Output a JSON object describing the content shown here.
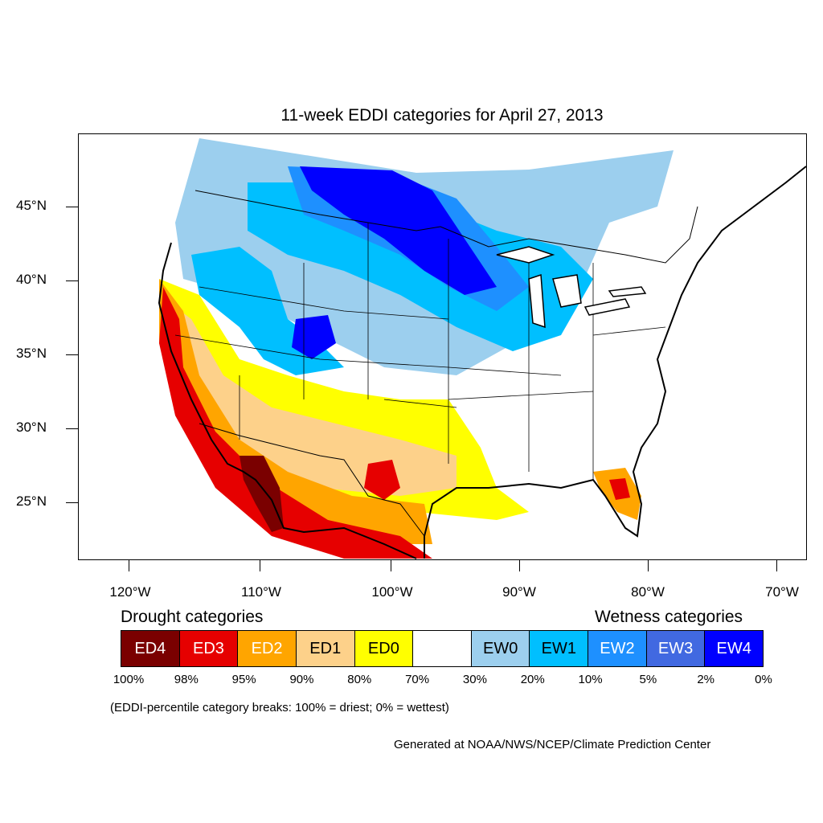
{
  "title": "11-week EDDI categories for April 27, 2013",
  "latitude_labels": [
    "45°N",
    "40°N",
    "35°N",
    "30°N",
    "25°N"
  ],
  "longitude_labels": [
    "120°W",
    "110°W",
    "100°W",
    "90°W",
    "80°W",
    "70°W"
  ],
  "legend": {
    "drought_heading": "Drought categories",
    "wetness_heading": "Wetness categories",
    "categories": [
      {
        "label": "ED4",
        "color": "#7a0000",
        "text_color": "#ffffff"
      },
      {
        "label": "ED3",
        "color": "#e60000",
        "text_color": "#ffffff"
      },
      {
        "label": "ED2",
        "color": "#ffa500",
        "text_color": "#ffffff"
      },
      {
        "label": "ED1",
        "color": "#fdd18a",
        "text_color": "#000000"
      },
      {
        "label": "ED0",
        "color": "#ffff00",
        "text_color": "#000000"
      },
      {
        "label": "",
        "color": "#ffffff",
        "text_color": "#000000"
      },
      {
        "label": "EW0",
        "color": "#9ccfee",
        "text_color": "#000000"
      },
      {
        "label": "EW1",
        "color": "#00bfff",
        "text_color": "#000000"
      },
      {
        "label": "EW2",
        "color": "#1e90ff",
        "text_color": "#ffffff"
      },
      {
        "label": "EW3",
        "color": "#4169e1",
        "text_color": "#ffffff"
      },
      {
        "label": "EW4",
        "color": "#0000ff",
        "text_color": "#ffffff"
      }
    ],
    "breaks": [
      "100%",
      "98%",
      "95%",
      "90%",
      "80%",
      "70%",
      "30%",
      "20%",
      "10%",
      "5%",
      "2%",
      "0%"
    ]
  },
  "note": "(EDDI-percentile category breaks: 100% = driest; 0% = wettest)",
  "credit": "Generated at NOAA/NWS/NCEP/Climate Prediction Center",
  "colors": {
    "ED4": "#7a0000",
    "ED3": "#e60000",
    "ED2": "#ffa500",
    "ED1": "#fdd18a",
    "ED0": "#ffff00",
    "EW0": "#9ccfee",
    "EW1": "#00bfff",
    "EW2": "#1e90ff",
    "EW3": "#4169e1",
    "EW4": "#0000ff"
  }
}
